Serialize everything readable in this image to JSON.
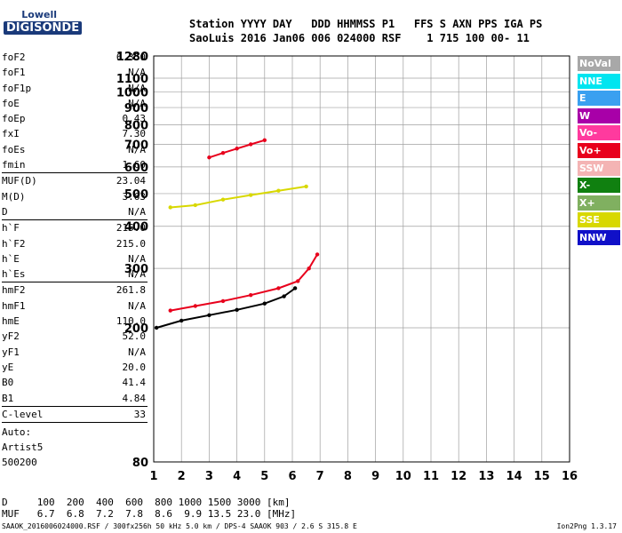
{
  "logo": {
    "line1": "Lowell",
    "line2": "DIGISONDE"
  },
  "header": {
    "line1": "Station YYYY DAY   DDD HHMMSS P1   FFS S AXN PPS IGA PS",
    "line2": "SaoLuis 2016 Jan06 006 024000 RSF    1 715 100 00- 11"
  },
  "params": [
    {
      "k": "foF2",
      "v": "6.350"
    },
    {
      "k": "foF1",
      "v": "N/A"
    },
    {
      "k": "foF1p",
      "v": "N/A"
    },
    {
      "k": "foE",
      "v": "N/A"
    },
    {
      "k": "foEp",
      "v": "0.43"
    },
    {
      "k": "fxI",
      "v": "7.30"
    },
    {
      "k": "foEs",
      "v": "N/A"
    },
    {
      "k": "fmin",
      "v": "1.60",
      "sep": true
    },
    {
      "k": "MUF(D)",
      "v": "23.04"
    },
    {
      "k": "M(D)",
      "v": "3.63"
    },
    {
      "k": "D",
      "v": "N/A",
      "sep": true
    },
    {
      "k": "h`F",
      "v": "215.0"
    },
    {
      "k": "h`F2",
      "v": "215.0"
    },
    {
      "k": "h`E",
      "v": "N/A"
    },
    {
      "k": "h`Es",
      "v": "N/A",
      "sep": true
    },
    {
      "k": "hmF2",
      "v": "261.8"
    },
    {
      "k": "hmF1",
      "v": "N/A"
    },
    {
      "k": "hmE",
      "v": "110.0"
    },
    {
      "k": "yF2",
      "v": "52.0"
    },
    {
      "k": "yF1",
      "v": "N/A"
    },
    {
      "k": "yE",
      "v": "20.0"
    },
    {
      "k": "B0",
      "v": "41.4"
    },
    {
      "k": "B1",
      "v": "4.84",
      "sep": true
    },
    {
      "k": "C-level",
      "v": "33",
      "sep": true
    }
  ],
  "auto": {
    "line1": "Auto:",
    "line2": "Artist5",
    "line3": "500200"
  },
  "footer": {
    "d_line": "D     100  200  400  600  800 1000 1500 3000 [km]",
    "muf_line": "MUF   6.7  6.8  7.2  7.8  8.6  9.9 13.5 23.0 [MHz]",
    "file_line": "SAAOK_2016006024000.RSF / 300fx256h 50 kHz 5.0 km / DPS-4 SAAOK 903 / 2.6 S 315.8 E",
    "version": "Ion2Png 1.3.17"
  },
  "legend": [
    {
      "label": "NoVal",
      "color": "#a8a8a8"
    },
    {
      "label": "NNE",
      "color": "#00e5f0"
    },
    {
      "label": "E",
      "color": "#3aa0f0"
    },
    {
      "label": "W",
      "color": "#a800a8"
    },
    {
      "label": "Vo-",
      "color": "#ff3a9e"
    },
    {
      "label": "Vo+",
      "color": "#e8001c"
    },
    {
      "label": "SSW",
      "color": "#f4b4b4"
    },
    {
      "label": "X-",
      "color": "#108010"
    },
    {
      "label": "X+",
      "color": "#80b060"
    },
    {
      "label": "SSE",
      "color": "#d8d800"
    },
    {
      "label": "NNW",
      "color": "#1010c8"
    }
  ],
  "chart_data": {
    "type": "scatter",
    "xlabel": "",
    "ylabel": "",
    "xlim": [
      1,
      16
    ],
    "ylim": [
      80,
      1280
    ],
    "yscale": "log",
    "x_ticks": [
      1,
      2,
      3,
      4,
      5,
      6,
      7,
      8,
      9,
      10,
      11,
      12,
      13,
      14,
      15,
      16
    ],
    "y_ticks": [
      80,
      200,
      300,
      400,
      500,
      600,
      700,
      800,
      900,
      1000,
      1100,
      1280
    ],
    "grid": true,
    "traces": [
      {
        "name": "trace-1",
        "color": "#e8001c",
        "points": [
          [
            1.6,
            225
          ],
          [
            2.5,
            232
          ],
          [
            3.5,
            240
          ],
          [
            4.5,
            250
          ],
          [
            5.5,
            262
          ],
          [
            6.2,
            275
          ],
          [
            6.6,
            300
          ],
          [
            6.9,
            330
          ]
        ]
      },
      {
        "name": "trace-2",
        "color": "#d8d800",
        "points": [
          [
            1.6,
            455
          ],
          [
            2.5,
            462
          ],
          [
            3.5,
            480
          ],
          [
            4.5,
            495
          ],
          [
            5.5,
            510
          ],
          [
            6.5,
            525
          ]
        ]
      },
      {
        "name": "trace-3",
        "color": "#e8001c",
        "points": [
          [
            3,
            640
          ],
          [
            3.5,
            660
          ],
          [
            4,
            680
          ],
          [
            4.5,
            700
          ],
          [
            5,
            720
          ]
        ]
      },
      {
        "name": "trace-4",
        "color": "#000000",
        "points": [
          [
            1.1,
            200
          ],
          [
            2,
            210
          ],
          [
            3,
            218
          ],
          [
            4,
            226
          ],
          [
            5,
            236
          ],
          [
            5.7,
            248
          ],
          [
            6.1,
            262
          ]
        ]
      }
    ]
  }
}
